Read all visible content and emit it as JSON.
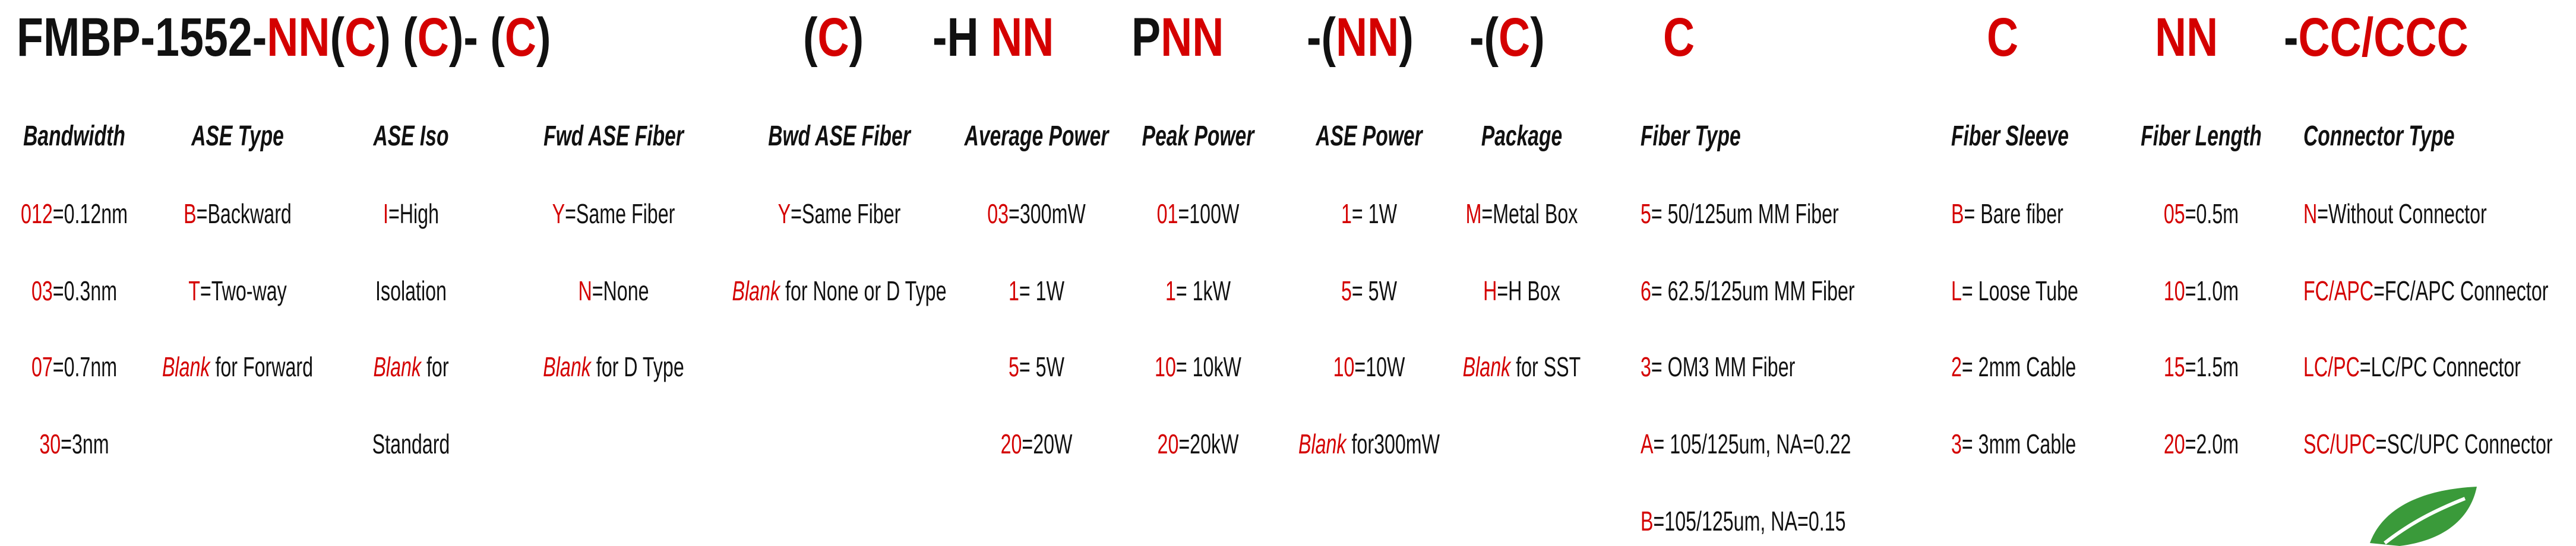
{
  "header": {
    "segments": [
      {
        "parts": [
          {
            "t": "FMBP-1552-",
            "c": "#111111"
          },
          {
            "t": "NN",
            "c": "#d40000"
          },
          {
            "t": "(",
            "c": "#111111"
          },
          {
            "t": "C",
            "c": "#d40000"
          },
          {
            "t": ") (",
            "c": "#111111"
          },
          {
            "t": "C",
            "c": "#d40000"
          },
          {
            "t": ")- (",
            "c": "#111111"
          },
          {
            "t": "C",
            "c": "#d40000"
          },
          {
            "t": ")",
            "c": "#111111"
          }
        ]
      },
      {
        "parts": [
          {
            "t": "(",
            "c": "#111111"
          },
          {
            "t": "C",
            "c": "#d40000"
          },
          {
            "t": ")",
            "c": "#111111"
          }
        ]
      },
      {
        "parts": [
          {
            "t": "-H ",
            "c": "#111111"
          },
          {
            "t": "NN",
            "c": "#d40000"
          }
        ]
      },
      {
        "parts": [
          {
            "t": "P",
            "c": "#111111"
          },
          {
            "t": "NN",
            "c": "#d40000"
          }
        ]
      },
      {
        "parts": [
          {
            "t": "-(",
            "c": "#111111"
          },
          {
            "t": "NN",
            "c": "#d40000"
          },
          {
            "t": ")",
            "c": "#111111"
          }
        ]
      },
      {
        "parts": [
          {
            "t": "-(",
            "c": "#111111"
          },
          {
            "t": "C",
            "c": "#d40000"
          },
          {
            "t": ")",
            "c": "#111111"
          }
        ]
      },
      {
        "parts": [
          {
            "t": "C",
            "c": "#d40000"
          }
        ]
      },
      {
        "parts": [
          {
            "t": "C",
            "c": "#d40000"
          }
        ]
      },
      {
        "parts": [
          {
            "t": "NN",
            "c": "#d40000"
          }
        ]
      },
      {
        "parts": [
          {
            "t": "-",
            "c": "#111111"
          },
          {
            "t": "CC/CCC",
            "c": "#d40000"
          }
        ]
      }
    ]
  },
  "colors": {
    "code": "#d40000",
    "text": "#111111",
    "logo": "#3a9a3a"
  },
  "columns": [
    {
      "title": "Bandwidth",
      "rows": [
        {
          "code": "012",
          "text": "=0.12nm"
        },
        {
          "code": "03",
          "text": "=0.3nm"
        },
        {
          "code": "07",
          "text": "=0.7nm"
        },
        {
          "code": "30",
          "text": "=3nm"
        }
      ]
    },
    {
      "title": "ASE Type",
      "rows": [
        {
          "code": "B",
          "text": "=Backward"
        },
        {
          "code": "T",
          "text": "=Two-way"
        },
        {
          "code": "Blank",
          "italic": true,
          "text": " for Forward"
        }
      ]
    },
    {
      "title": "ASE Iso",
      "rows": [
        {
          "code": "I",
          "text": "=High"
        },
        {
          "code": "",
          "text": "Isolation"
        },
        {
          "code": "Blank",
          "italic": true,
          "text": " for"
        },
        {
          "code": "",
          "text": "Standard"
        }
      ]
    },
    {
      "title": "Fwd ASE Fiber",
      "rows": [
        {
          "code": "Y",
          "text": "=Same Fiber"
        },
        {
          "code": "N",
          "text": "=None"
        },
        {
          "code": "Blank",
          "italic": true,
          "text": " for D Type"
        }
      ]
    },
    {
      "title": "Bwd ASE Fiber",
      "rows": [
        {
          "code": "Y",
          "text": "=Same Fiber"
        },
        {
          "code": "Blank",
          "italic": true,
          "text": " for None or D Type"
        }
      ]
    },
    {
      "title": "Average Power",
      "rows": [
        {
          "code": "03",
          "text": "=300mW"
        },
        {
          "code": "1",
          "text": "= 1W"
        },
        {
          "code": "5",
          "text": "= 5W"
        },
        {
          "code": "20",
          "text": "=20W"
        }
      ]
    },
    {
      "title": "Peak Power",
      "rows": [
        {
          "code": "01",
          "text": "=100W"
        },
        {
          "code": "1",
          "text": "= 1kW"
        },
        {
          "code": "10",
          "text": "= 10kW"
        },
        {
          "code": "20",
          "text": "=20kW"
        }
      ]
    },
    {
      "title": "ASE Power",
      "rows": [
        {
          "code": "1",
          "text": "= 1W"
        },
        {
          "code": "5",
          "text": "= 5W"
        },
        {
          "code": "10",
          "text": "=10W"
        },
        {
          "code": "Blank",
          "italic": true,
          "text": " for300mW"
        }
      ]
    },
    {
      "title": "Package",
      "rows": [
        {
          "code": "M",
          "text": "=Metal Box"
        },
        {
          "code": "H",
          "text": "=H Box"
        },
        {
          "code": "Blank",
          "italic": true,
          "text": " for SST"
        }
      ]
    },
    {
      "title": "Fiber Type",
      "rows": [
        {
          "code": "5",
          "text": "= 50/125um MM Fiber"
        },
        {
          "code": "6",
          "text": "= 62.5/125um MM Fiber"
        },
        {
          "code": "3",
          "text": "= OM3 MM Fiber"
        },
        {
          "code": "A",
          "text": "= 105/125um, NA=0.22"
        },
        {
          "code": "B",
          "text": "=105/125um, NA=0.15"
        }
      ]
    },
    {
      "title": "Fiber Sleeve",
      "rows": [
        {
          "code": "B",
          "text": "= Bare fiber"
        },
        {
          "code": "L",
          "text": "= Loose Tube"
        },
        {
          "code": "2",
          "text": "= 2mm Cable"
        },
        {
          "code": "3",
          "text": "= 3mm Cable"
        }
      ]
    },
    {
      "title": "Fiber Length",
      "rows": [
        {
          "code": "05",
          "text": "=0.5m"
        },
        {
          "code": "10",
          "text": "=1.0m"
        },
        {
          "code": "15",
          "text": "=1.5m"
        },
        {
          "code": "20",
          "text": "=2.0m"
        }
      ]
    },
    {
      "title": "Connector Type",
      "rows": [
        {
          "code": "N",
          "text": "=Without Connector"
        },
        {
          "code": "FC/APC",
          "text": "=FC/APC Connector"
        },
        {
          "code": "LC/PC",
          "text": "=LC/PC Connector"
        },
        {
          "code": "SC/UPC",
          "text": "=SC/UPC Connector"
        }
      ]
    }
  ]
}
